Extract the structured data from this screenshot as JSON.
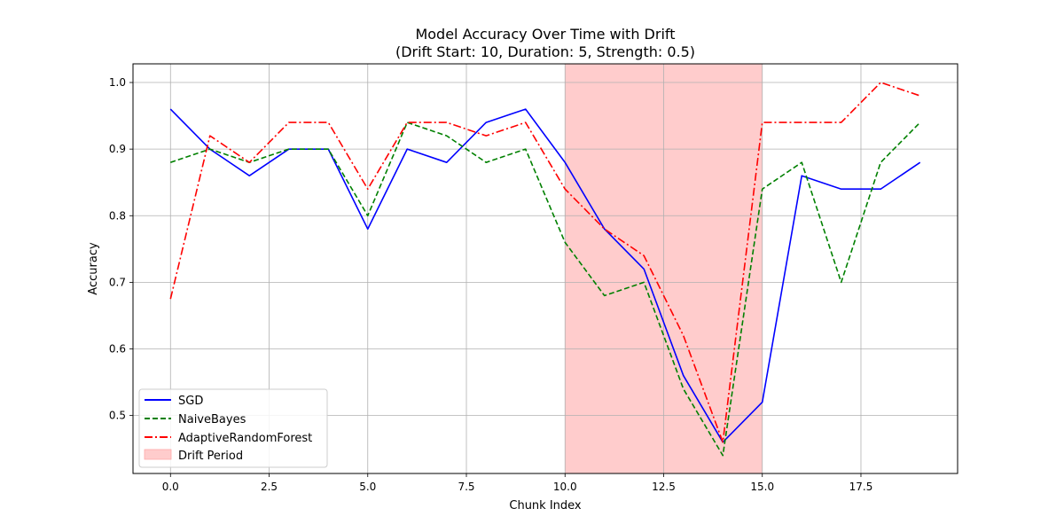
{
  "chart_data": {
    "type": "line",
    "title": "Model Accuracy Over Time with Drift",
    "subtitle": "(Drift Start: 10, Duration: 5, Strength: 0.5)",
    "xlabel": "Chunk Index",
    "ylabel": "Accuracy",
    "xlim": [
      -0.95,
      19.95
    ],
    "ylim": [
      0.413,
      1.028
    ],
    "xticks": [
      0.0,
      2.5,
      5.0,
      7.5,
      10.0,
      12.5,
      15.0,
      17.5
    ],
    "xtick_labels": [
      "0.0",
      "2.5",
      "5.0",
      "7.5",
      "10.0",
      "12.5",
      "15.0",
      "17.5"
    ],
    "yticks": [
      0.5,
      0.6,
      0.7,
      0.8,
      0.9,
      1.0
    ],
    "ytick_labels": [
      "0.5",
      "0.6",
      "0.7",
      "0.8",
      "0.9",
      "1.0"
    ],
    "grid": true,
    "legend_position": "lower-left",
    "drift_period": {
      "start": 10,
      "end": 15,
      "label": "Drift Period",
      "color": "#ffcccc"
    },
    "x": [
      0,
      1,
      2,
      3,
      4,
      5,
      6,
      7,
      8,
      9,
      10,
      11,
      12,
      13,
      14,
      15,
      16,
      17,
      18,
      19
    ],
    "series": [
      {
        "name": "SGD",
        "color": "#0000ff",
        "style": "solid",
        "values": [
          0.96,
          0.9,
          0.86,
          0.9,
          0.9,
          0.78,
          0.9,
          0.88,
          0.94,
          0.96,
          0.88,
          0.78,
          0.72,
          0.56,
          0.46,
          0.52,
          0.86,
          0.84,
          0.84,
          0.88
        ]
      },
      {
        "name": "NaiveBayes",
        "color": "#008000",
        "style": "dashed",
        "values": [
          0.88,
          0.9,
          0.88,
          0.9,
          0.9,
          0.8,
          0.94,
          0.92,
          0.88,
          0.9,
          0.76,
          0.68,
          0.7,
          0.54,
          0.44,
          0.84,
          0.88,
          0.7,
          0.88,
          0.94
        ]
      },
      {
        "name": "AdaptiveRandomForest",
        "color": "#ff0000",
        "style": "dashdot",
        "values": [
          0.675,
          0.92,
          0.88,
          0.94,
          0.94,
          0.84,
          0.94,
          0.94,
          0.92,
          0.94,
          0.84,
          0.78,
          0.74,
          0.62,
          0.46,
          0.94,
          0.94,
          0.94,
          1.0,
          0.98
        ]
      }
    ]
  }
}
